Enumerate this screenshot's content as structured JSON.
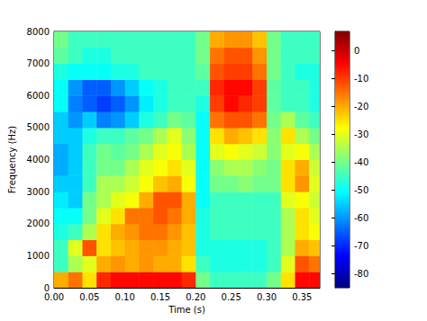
{
  "chart_data": {
    "type": "heatmap",
    "xlabel": "Time (s)",
    "ylabel": "Frequency (Hz)",
    "xlim": [
      0,
      0.375
    ],
    "xticks": [
      {
        "value": 0,
        "label": "0.00"
      },
      {
        "value": 0.05,
        "label": "0.05"
      },
      {
        "value": 0.1,
        "label": "0.10"
      },
      {
        "value": 0.15,
        "label": "0.15"
      },
      {
        "value": 0.2,
        "label": "0.20"
      },
      {
        "value": 0.25,
        "label": "0.25"
      },
      {
        "value": 0.3,
        "label": "0.30"
      },
      {
        "value": 0.35,
        "label": "0.35"
      }
    ],
    "ylim": [
      0,
      8000
    ],
    "yticks": [
      0,
      1000,
      2000,
      3000,
      4000,
      5000,
      6000,
      7000,
      8000
    ],
    "time_edges": [
      0,
      0.02,
      0.04,
      0.06,
      0.08,
      0.1,
      0.12,
      0.14,
      0.16,
      0.18,
      0.2,
      0.22,
      0.24,
      0.26,
      0.28,
      0.3,
      0.32,
      0.34,
      0.36,
      0.375
    ],
    "freq_edges": [
      0,
      500,
      1000,
      1500,
      2000,
      2500,
      3000,
      3500,
      4000,
      4500,
      5000,
      5500,
      6000,
      6500,
      7000,
      7500,
      8000
    ],
    "cells": [
      [
        -20,
        -15,
        -25,
        -8,
        -5,
        -5,
        -5,
        -5,
        -5,
        -8,
        -40,
        -45,
        -45,
        -45,
        -45,
        -40,
        -25,
        -5,
        -5
      ],
      [
        -45,
        -35,
        -30,
        -20,
        -18,
        -20,
        -18,
        -20,
        -20,
        -25,
        -45,
        -48,
        -48,
        -48,
        -48,
        -45,
        -30,
        -12,
        -15
      ],
      [
        -45,
        -30,
        -12,
        -25,
        -22,
        -20,
        -18,
        -18,
        -20,
        -22,
        -48,
        -48,
        -48,
        -48,
        -48,
        -45,
        -35,
        -20,
        -22
      ],
      [
        -48,
        -45,
        -35,
        -25,
        -20,
        -18,
        -15,
        -15,
        -18,
        -22,
        -48,
        -45,
        -45,
        -45,
        -45,
        -45,
        -35,
        -25,
        -28
      ],
      [
        -50,
        -50,
        -40,
        -30,
        -25,
        -15,
        -15,
        -12,
        -15,
        -20,
        -48,
        -45,
        -45,
        -45,
        -45,
        -45,
        -35,
        -25,
        -30
      ],
      [
        -52,
        -55,
        -40,
        -35,
        -30,
        -28,
        -20,
        -12,
        -12,
        -20,
        -50,
        -45,
        -45,
        -45,
        -45,
        -45,
        -30,
        -28,
        -32
      ],
      [
        -55,
        -55,
        -45,
        -35,
        -35,
        -32,
        -28,
        -22,
        -20,
        -28,
        -50,
        -40,
        -40,
        -38,
        -40,
        -40,
        -25,
        -18,
        -30
      ],
      [
        -58,
        -55,
        -45,
        -40,
        -40,
        -35,
        -30,
        -28,
        -25,
        -30,
        -50,
        -38,
        -35,
        -35,
        -38,
        -40,
        -25,
        -20,
        -32
      ],
      [
        -58,
        -55,
        -45,
        -40,
        -42,
        -40,
        -35,
        -30,
        -28,
        -35,
        -50,
        -30,
        -28,
        -30,
        -32,
        -38,
        -30,
        -28,
        -35
      ],
      [
        -55,
        -55,
        -48,
        -45,
        -45,
        -42,
        -40,
        -35,
        -30,
        -38,
        -50,
        -25,
        -20,
        -22,
        -25,
        -38,
        -25,
        -35,
        -40
      ],
      [
        -55,
        -60,
        -55,
        -62,
        -60,
        -55,
        -48,
        -45,
        -40,
        -42,
        -50,
        -15,
        -12,
        -12,
        -15,
        -40,
        -35,
        -42,
        -45
      ],
      [
        -50,
        -62,
        -65,
        -68,
        -65,
        -60,
        -52,
        -48,
        -45,
        -45,
        -48,
        -10,
        -5,
        -8,
        -10,
        -42,
        -45,
        -45,
        -48
      ],
      [
        -50,
        -60,
        -65,
        -65,
        -60,
        -55,
        -50,
        -48,
        -45,
        -45,
        -45,
        -8,
        -5,
        -5,
        -10,
        -42,
        -45,
        -45,
        -48
      ],
      [
        -48,
        -50,
        -50,
        -50,
        -48,
        -48,
        -45,
        -45,
        -45,
        -45,
        -42,
        -12,
        -10,
        -10,
        -15,
        -40,
        -45,
        -48,
        -48
      ],
      [
        -42,
        -45,
        -48,
        -48,
        -45,
        -45,
        -45,
        -45,
        -45,
        -45,
        -40,
        -15,
        -12,
        -12,
        -18,
        -40,
        -45,
        -45,
        -45
      ],
      [
        -40,
        -45,
        -45,
        -45,
        -45,
        -45,
        -45,
        -45,
        -45,
        -45,
        -40,
        -20,
        -18,
        -18,
        -22,
        -40,
        -45,
        -45,
        -45
      ]
    ],
    "colorbar_range": [
      -85,
      7
    ],
    "colorbar_ticks": [
      0,
      -10,
      -20,
      -30,
      -40,
      -50,
      -60,
      -70,
      -80
    ]
  }
}
